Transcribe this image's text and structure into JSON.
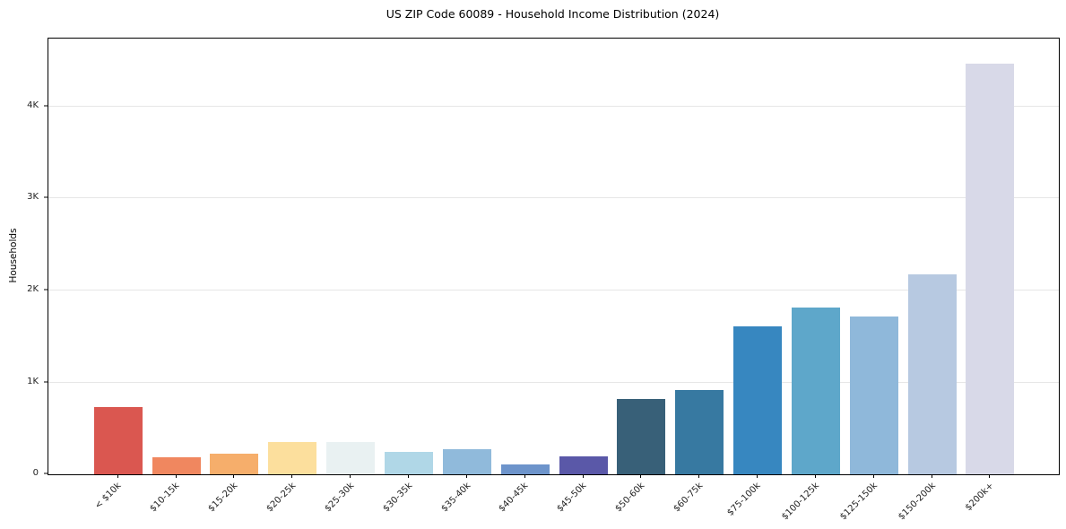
{
  "title": "US ZIP Code 60089 - Household Income Distribution (2024)",
  "chart_data": {
    "type": "bar",
    "title": "US ZIP Code 60089 - Household Income Distribution (2024)",
    "xlabel": "",
    "ylabel": "Households",
    "categories": [
      "< $10k",
      "$10-15k",
      "$15-20k",
      "$20-25k",
      "$25-30k",
      "$30-35k",
      "$35-40k",
      "$40-45k",
      "$45-50k",
      "$50-60k",
      "$60-75k",
      "$75-100k",
      "$100-125k",
      "$125-150k",
      "$150-200k",
      "$200k+"
    ],
    "values": [
      730,
      185,
      225,
      350,
      355,
      240,
      275,
      110,
      200,
      815,
      915,
      1610,
      1815,
      1715,
      2180,
      4470
    ],
    "bar_colors": [
      "#da5750",
      "#f0875f",
      "#f6ae6b",
      "#fcdf9d",
      "#e9f1f2",
      "#b0d7e7",
      "#90badb",
      "#6d94cb",
      "#5a58a8",
      "#386078",
      "#3779a1",
      "#3787c0",
      "#5ea7ca",
      "#8fb8da",
      "#b7c9e1",
      "#d8d9e8"
    ],
    "ylim": [
      0,
      4741
    ],
    "yticks": [
      {
        "value": 0,
        "label": "0"
      },
      {
        "value": 1000,
        "label": "1K"
      },
      {
        "value": 2000,
        "label": "2K"
      },
      {
        "value": 3000,
        "label": "3K"
      },
      {
        "value": 4000,
        "label": "4K"
      }
    ],
    "grid": "horizontal",
    "legend": "none",
    "background_color": "#ffffff",
    "spine_color": "#000000",
    "gridline_color": "#e6e6e6",
    "tick_label_color": "#222222"
  }
}
